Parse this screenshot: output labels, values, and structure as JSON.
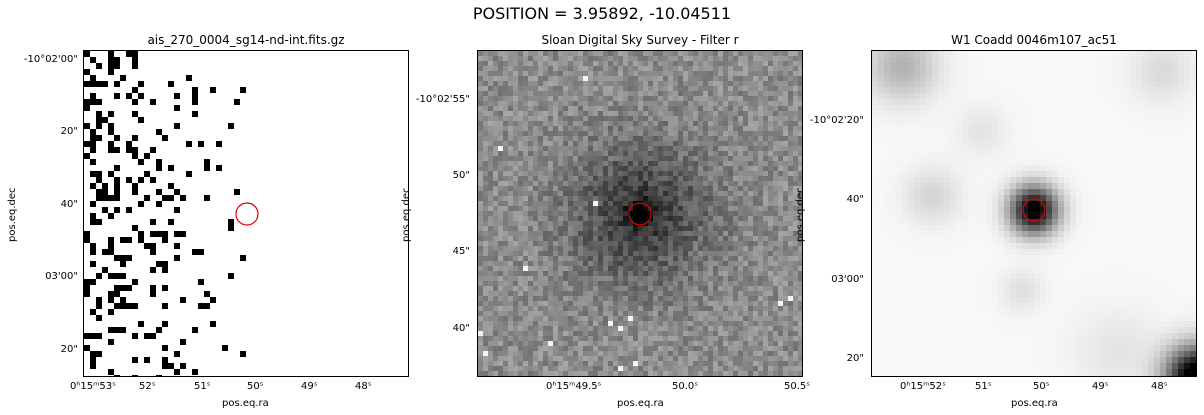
{
  "suptitle": "POSITION = 3.95892, -10.04511",
  "panels": [
    {
      "title": "ais_270_0004_sg14-nd-int.fits.gz",
      "xlabel": "pos.eq.ra",
      "ylabel": "pos.eq.dec",
      "xticks": [
        "0ʰ15ᵐ53ˢ",
        "52ˢ",
        "51ˢ",
        "50ˢ",
        "49ˢ",
        "48ˢ"
      ],
      "yticks": [
        "-10°02'00\"",
        "20\"",
        "40\"",
        "03'00\"",
        "20\""
      ],
      "image": "sparse-binary-noise",
      "marker": "red-circle"
    },
    {
      "title": "Sloan Digital Sky Survey - Filter r",
      "xlabel": "pos.eq.ra",
      "ylabel": "pos.eq.dec",
      "xticks": [
        "0ʰ15ᵐ49.5ˢ",
        "50.0ˢ",
        "50.5ˢ"
      ],
      "yticks": [
        "-10°02'55\"",
        "50\"",
        "45\"",
        "40\""
      ],
      "image": "gray-noise-with-dark-galaxy",
      "marker": "red-circle"
    },
    {
      "title": "W1 Coadd 0046m107_ac51",
      "xlabel": "pos.eq.ra",
      "ylabel": "pos.eq.dec",
      "xticks": [
        "0ʰ15ᵐ52ˢ",
        "51ˢ",
        "50ˢ",
        "49ˢ",
        "48ˢ"
      ],
      "yticks": [
        "-10°02'20\"",
        "40\"",
        "03'00\"",
        "20\""
      ],
      "image": "smooth-light-with-dark-source",
      "marker": "red-circle"
    }
  ],
  "colors": {
    "marker": "#e00000",
    "frame": "#000000"
  }
}
